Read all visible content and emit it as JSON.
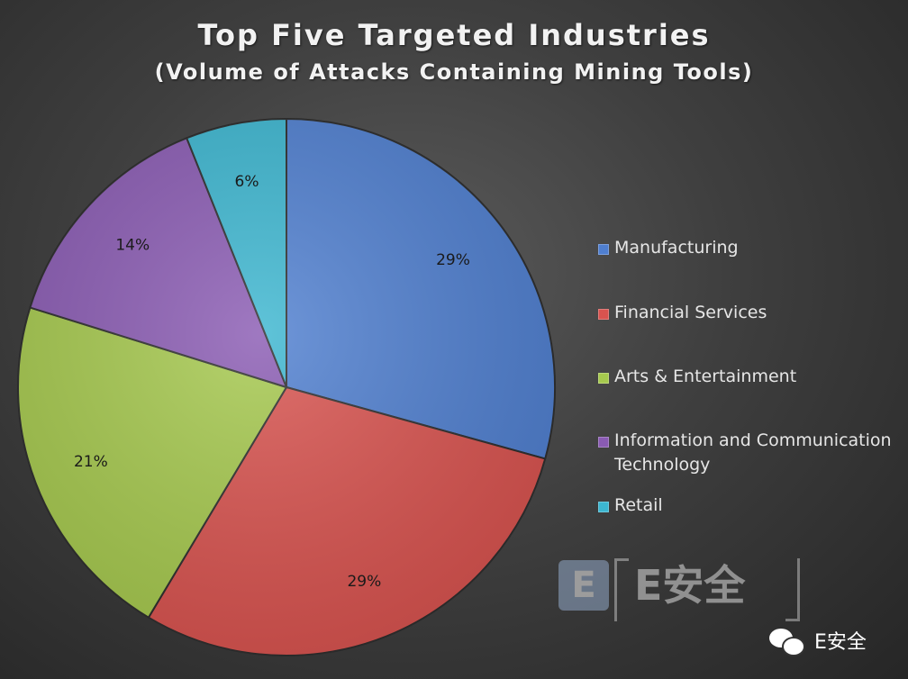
{
  "chart_data": {
    "type": "pie",
    "title": "Top Five Targeted Industries",
    "subtitle": "(Volume of Attacks Containing Mining Tools)",
    "start_angle_deg": 0,
    "direction": "clockwise",
    "slices": [
      {
        "name": "Manufacturing",
        "value": 29,
        "label": "29%",
        "color": "#4f7fd0"
      },
      {
        "name": "Financial Services",
        "value": 29,
        "label": "29%",
        "color": "#d9534f"
      },
      {
        "name": "Arts & Entertainment",
        "value": 21,
        "label": "21%",
        "color": "#a6c94e"
      },
      {
        "name": "Information and Communication Technology",
        "value": 14,
        "label": "14%",
        "color": "#8a5bb3"
      },
      {
        "name": "Retail",
        "value": 6,
        "label": "6%",
        "color": "#3cb6d0"
      }
    ],
    "legend_position": "right"
  },
  "watermark": {
    "logo_letter": "E",
    "text": "E安全"
  },
  "credit": {
    "icon": "wechat-icon",
    "text": "E安全"
  }
}
